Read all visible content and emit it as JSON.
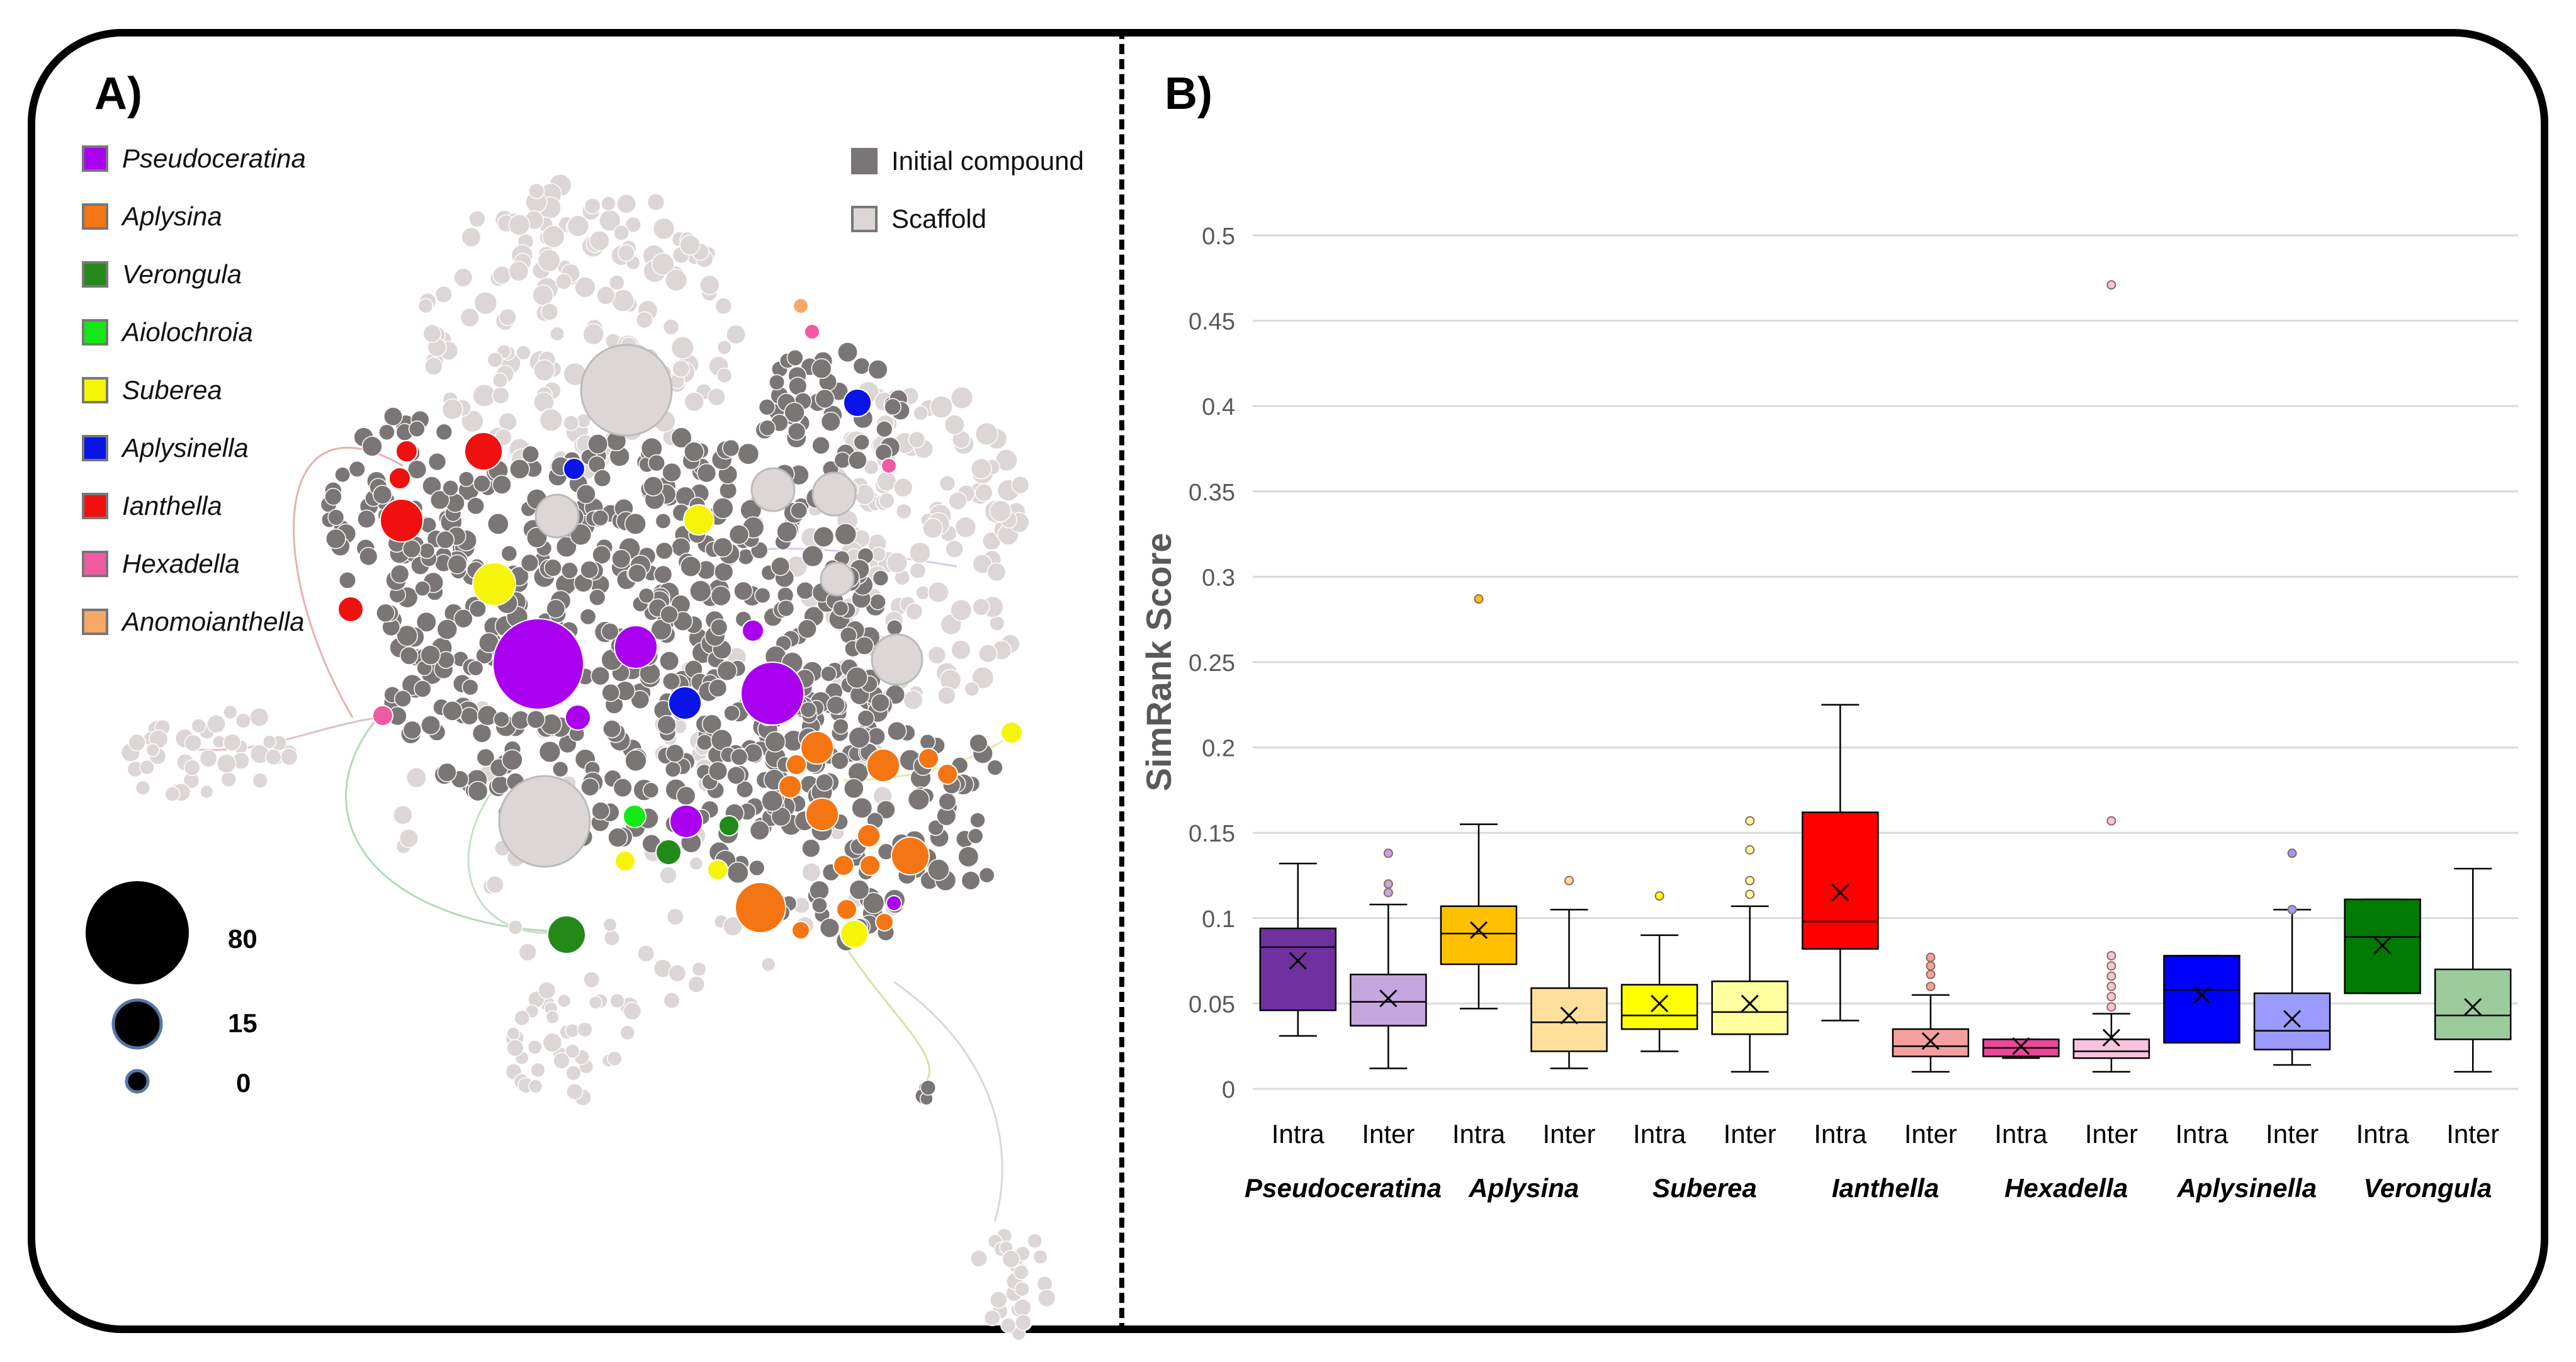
{
  "panel_a": {
    "label": "A)",
    "genus_legend": [
      {
        "name": "Pseudoceratina",
        "color": "#a900f0"
      },
      {
        "name": "Aplysina",
        "color": "#f57512"
      },
      {
        "name": "Verongula",
        "color": "#238a1a"
      },
      {
        "name": "Aiolochroia",
        "color": "#14e814"
      },
      {
        "name": "Suberea",
        "color": "#f5f50a"
      },
      {
        "name": "Aplysinella",
        "color": "#0a14e8"
      },
      {
        "name": "Ianthella",
        "color": "#f01010"
      },
      {
        "name": "Hexadella",
        "color": "#f05aa0"
      },
      {
        "name": "Anomoianthella",
        "color": "#f7a868"
      }
    ],
    "type_legend": [
      {
        "name": "Initial compound",
        "color": "#7a7676"
      },
      {
        "name": "Scaffold",
        "color": "#dcd6d6"
      }
    ],
    "size_legend": [
      {
        "value": "80"
      },
      {
        "value": "15"
      },
      {
        "value": "0"
      }
    ]
  },
  "chart_data": {
    "type": "boxplot",
    "panel_label": "B)",
    "ylabel": "SimRank Score",
    "xlabel": "",
    "ylim": [
      0,
      0.5
    ],
    "yticks": [
      0,
      0.05,
      0.1,
      0.15,
      0.2,
      0.25,
      0.3,
      0.35,
      0.4,
      0.45,
      0.5
    ],
    "ytick_labels": [
      "0",
      "0.05",
      "0.1",
      "0.15",
      "0.2",
      "0.25",
      "0.3",
      "0.35",
      "0.4",
      "0.45",
      "0.5"
    ],
    "grid": true,
    "groups": [
      "Pseudoceratina",
      "Aplysina",
      "Suberea",
      "Ianthella",
      "Hexadella",
      "Aplysinella",
      "Verongula"
    ],
    "boxes": [
      {
        "group": "Pseudoceratina",
        "label": "Intra",
        "color": "#7030a0",
        "whisker_low": 0.031,
        "q1": 0.046,
        "median": 0.083,
        "q3": 0.094,
        "whisker_high": 0.132,
        "mean": 0.075,
        "outliers": []
      },
      {
        "group": "Pseudoceratina",
        "label": "Inter",
        "color": "#c5a6dd",
        "whisker_low": 0.012,
        "q1": 0.037,
        "median": 0.051,
        "q3": 0.067,
        "whisker_high": 0.108,
        "mean": 0.053,
        "outliers": [
          0.115,
          0.12,
          0.138
        ]
      },
      {
        "group": "Aplysina",
        "label": "Intra",
        "color": "#ffc000",
        "whisker_low": 0.047,
        "q1": 0.073,
        "median": 0.091,
        "q3": 0.107,
        "whisker_high": 0.155,
        "mean": 0.093,
        "outliers": [
          0.287
        ]
      },
      {
        "group": "Aplysina",
        "label": "Inter",
        "color": "#ffe09a",
        "whisker_low": 0.012,
        "q1": 0.022,
        "median": 0.039,
        "q3": 0.059,
        "whisker_high": 0.105,
        "mean": 0.043,
        "outliers": [
          0.122
        ]
      },
      {
        "group": "Suberea",
        "label": "Intra",
        "color": "#ffff00",
        "whisker_low": 0.022,
        "q1": 0.035,
        "median": 0.043,
        "q3": 0.061,
        "whisker_high": 0.09,
        "mean": 0.05,
        "outliers": [
          0.113
        ]
      },
      {
        "group": "Suberea",
        "label": "Inter",
        "color": "#ffffa0",
        "whisker_low": 0.01,
        "q1": 0.032,
        "median": 0.045,
        "q3": 0.063,
        "whisker_high": 0.107,
        "mean": 0.05,
        "outliers": [
          0.114,
          0.122,
          0.14,
          0.157
        ]
      },
      {
        "group": "Ianthella",
        "label": "Intra",
        "color": "#ff0000",
        "whisker_low": 0.04,
        "q1": 0.082,
        "median": 0.098,
        "q3": 0.162,
        "whisker_high": 0.225,
        "mean": 0.115,
        "outliers": []
      },
      {
        "group": "Ianthella",
        "label": "Inter",
        "color": "#f5a0a0",
        "whisker_low": 0.01,
        "q1": 0.019,
        "median": 0.025,
        "q3": 0.035,
        "whisker_high": 0.055,
        "mean": 0.028,
        "outliers": [
          0.06,
          0.067,
          0.072,
          0.077
        ]
      },
      {
        "group": "Hexadella",
        "label": "Intra",
        "color": "#e8489a",
        "whisker_low": 0.018,
        "q1": 0.019,
        "median": 0.024,
        "q3": 0.029,
        "whisker_high": 0.029,
        "mean": 0.025,
        "outliers": []
      },
      {
        "group": "Hexadella",
        "label": "Inter",
        "color": "#f7c4de",
        "whisker_low": 0.01,
        "q1": 0.018,
        "median": 0.022,
        "q3": 0.029,
        "whisker_high": 0.044,
        "mean": 0.03,
        "outliers": [
          0.048,
          0.054,
          0.06,
          0.066,
          0.072,
          0.078,
          0.157,
          0.471
        ]
      },
      {
        "group": "Aplysinella",
        "label": "Intra",
        "color": "#0000ff",
        "whisker_low": 0.027,
        "q1": 0.027,
        "median": 0.058,
        "q3": 0.078,
        "whisker_high": 0.078,
        "mean": 0.055,
        "outliers": []
      },
      {
        "group": "Aplysinella",
        "label": "Inter",
        "color": "#9a9aff",
        "whisker_low": 0.014,
        "q1": 0.023,
        "median": 0.034,
        "q3": 0.056,
        "whisker_high": 0.105,
        "mean": 0.041,
        "outliers": [
          0.105,
          0.138
        ]
      },
      {
        "group": "Verongula",
        "label": "Intra",
        "color": "#007a00",
        "whisker_low": 0.056,
        "q1": 0.056,
        "median": 0.089,
        "q3": 0.111,
        "whisker_high": 0.111,
        "mean": 0.084,
        "outliers": []
      },
      {
        "group": "Verongula",
        "label": "Inter",
        "color": "#9ccc9c",
        "whisker_low": 0.01,
        "q1": 0.029,
        "median": 0.043,
        "q3": 0.07,
        "whisker_high": 0.129,
        "mean": 0.048,
        "outliers": []
      }
    ]
  }
}
